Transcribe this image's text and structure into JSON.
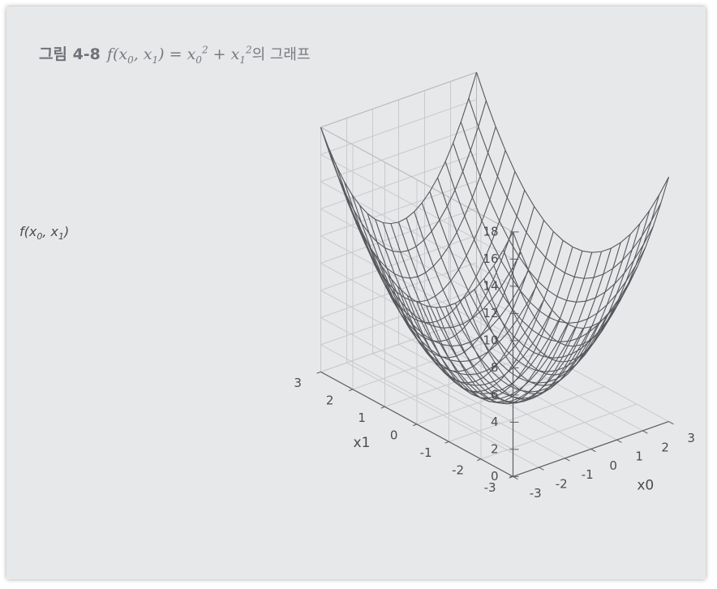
{
  "figure": {
    "label": "그림 4-8",
    "formula_prefix": "f(x",
    "formula_mid": ", x",
    "formula_after_args": ") = x",
    "plus": " + x",
    "sub0": "0",
    "sub1": "1",
    "sup2": "2",
    "caption_suffix": "의 그래프"
  },
  "chart_data": {
    "type": "surface",
    "function": "x0^2 + x1^2",
    "xlabel": "x0",
    "ylabel": "x1",
    "zlabel_text": "f(x",
    "zlabel_sub0": "0",
    "zlabel_mid": ", x",
    "zlabel_sub1": "1",
    "zlabel_end": ")",
    "xlim": [
      -3,
      3
    ],
    "ylim": [
      -3,
      3
    ],
    "zlim": [
      0,
      18
    ],
    "x_ticks": [
      "-3",
      "-2",
      "-1",
      "0",
      "1",
      "2",
      "3"
    ],
    "y_ticks": [
      "-3",
      "-2",
      "-1",
      "0",
      "1",
      "2",
      "3"
    ],
    "z_ticks": [
      "0",
      "2",
      "4",
      "6",
      "8",
      "10",
      "12",
      "14",
      "16",
      "18"
    ],
    "grid": true,
    "mesh_resolution": 21,
    "wire_color": "#56585c",
    "grid_color": "#c9cacd"
  }
}
